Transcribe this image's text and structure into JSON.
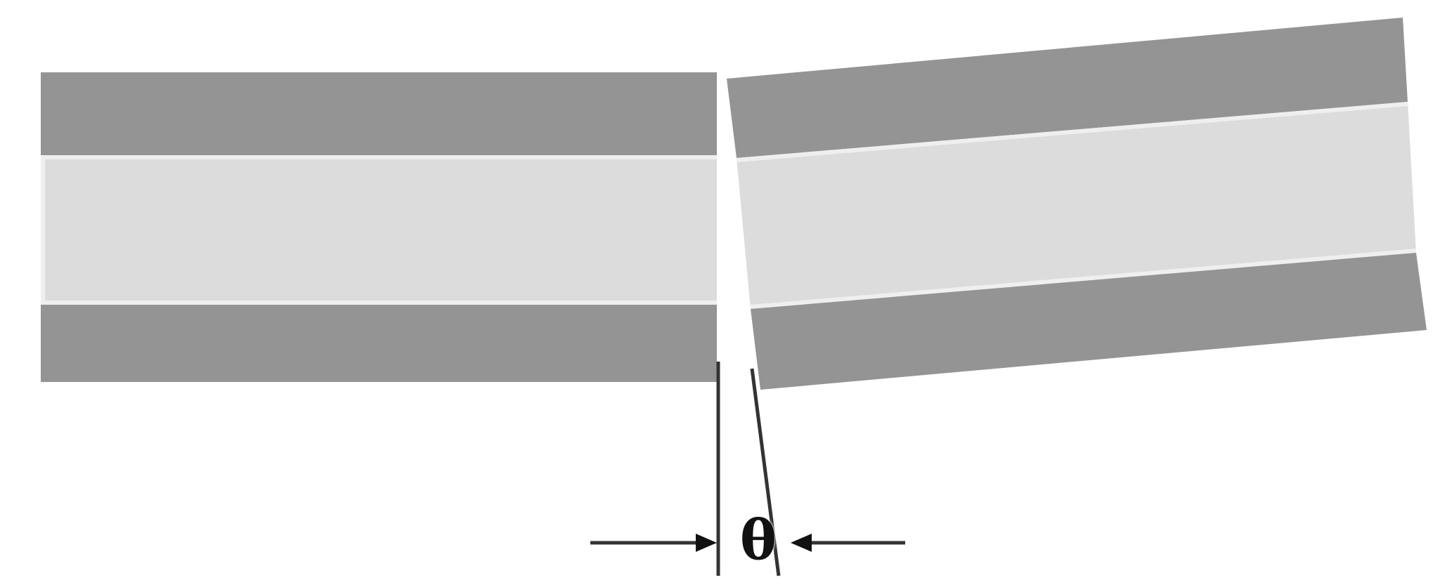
{
  "diagram": {
    "angle_label": "θ",
    "colors": {
      "background": "#ffffff",
      "cladding": "#949494",
      "core": "#dcdcdc",
      "core_edge": "#efefef",
      "line": "#333333",
      "arrow": "#111111"
    }
  }
}
